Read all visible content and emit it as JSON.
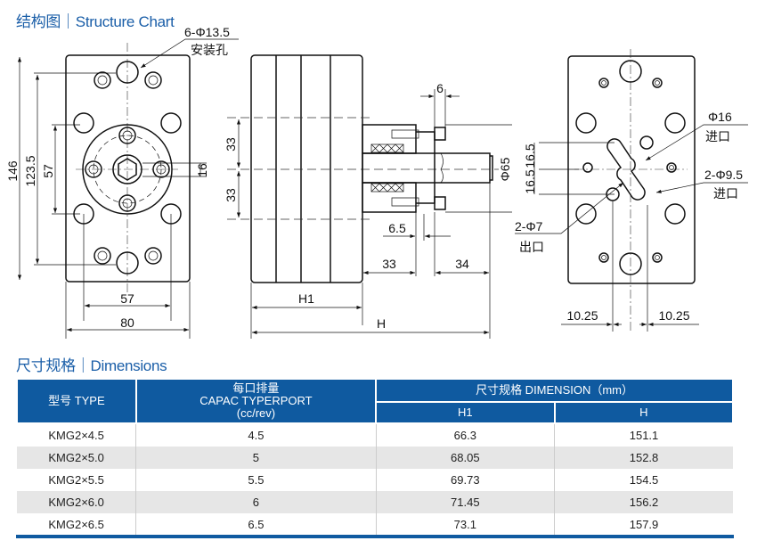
{
  "section_structure": {
    "title": "结构图｜Structure Chart"
  },
  "section_dimensions": {
    "title": "尺寸规格｜Dimensions"
  },
  "front_view": {
    "mount_holes": "6-Φ13.5",
    "mount_holes_note": "安装孔",
    "dim_total_height": "146",
    "dim_hole_height": "123.5",
    "dim_inner": "57",
    "dim_hex": "16",
    "dim_hole_width": "57",
    "dim_width": "80"
  },
  "side_view": {
    "dim_upper": "33",
    "dim_lower": "33",
    "dim_top": "6",
    "dim_diameter": "Φ65",
    "dim_step": "6.5",
    "dim_flange": "33",
    "dim_shaft": "34",
    "dim_h1": "H1",
    "dim_h": "H"
  },
  "back_view": {
    "inlet_main": "Φ16",
    "inlet_main_note": "进口",
    "inlet_secondary": "2-Φ9.5",
    "inlet_secondary_note": "进口",
    "outlet": "2-Φ7",
    "outlet_note": "出口",
    "dim_upper": "16.5",
    "dim_lower": "16.5",
    "dim_left": "10.25",
    "dim_right": "10.25"
  },
  "table": {
    "headers": {
      "type": "型号 TYPE",
      "capacity_cn": "每口排量",
      "capacity_en": "CAPAC TYPERPORT",
      "capacity_unit": "(cc/rev)",
      "dimension": "尺寸规格 DIMENSION（mm）",
      "h1": "H1",
      "h": "H"
    },
    "rows": [
      {
        "type": "KMG2×4.5",
        "capacity": "4.5",
        "h1": "66.3",
        "h": "151.1"
      },
      {
        "type": "KMG2×5.0",
        "capacity": "5",
        "h1": "68.05",
        "h": "152.8"
      },
      {
        "type": "KMG2×5.5",
        "capacity": "5.5",
        "h1": "69.73",
        "h": "154.5"
      },
      {
        "type": "KMG2×6.0",
        "capacity": "6",
        "h1": "71.45",
        "h": "156.2"
      },
      {
        "type": "KMG2×6.5",
        "capacity": "6.5",
        "h1": "73.1",
        "h": "157.9"
      }
    ]
  },
  "colors": {
    "accent": "#0f5aa0",
    "title": "#1a5ea8",
    "row_alt": "#e6e6e6"
  }
}
